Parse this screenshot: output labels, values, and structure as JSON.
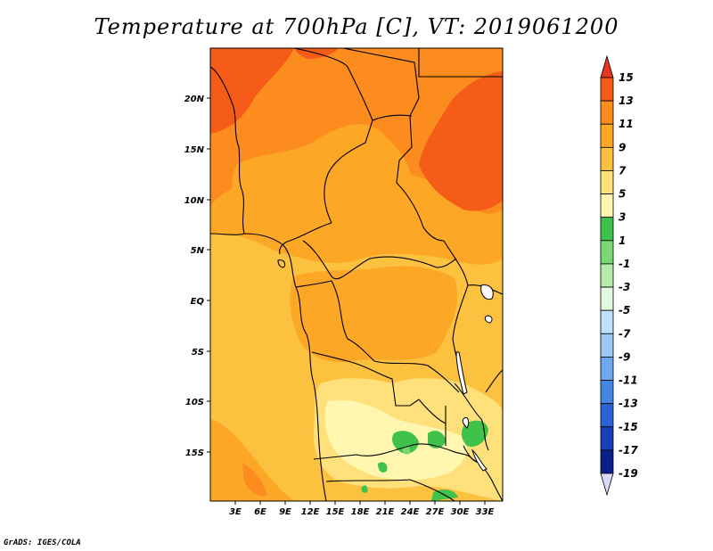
{
  "title": "Temperature at 700hPa [C], VT: 2019061200",
  "footer": "GrADS: IGES/COLA",
  "map": {
    "lon_labels": [
      "3E",
      "6E",
      "9E",
      "12E",
      "15E",
      "18E",
      "21E",
      "24E",
      "27E",
      "30E",
      "33E"
    ],
    "lat_labels": [
      "20N",
      "15N",
      "10N",
      "5N",
      "EQ",
      "5S",
      "10S",
      "15S"
    ]
  },
  "colorbar": {
    "labels": [
      "15",
      "13",
      "11",
      "9",
      "7",
      "5",
      "3",
      "1",
      "-1",
      "-3",
      "-5",
      "-7",
      "-9",
      "-11",
      "-13",
      "-15",
      "-17",
      "-19"
    ],
    "colors": [
      "#e8361f",
      "#f55c17",
      "#fb8c1d",
      "#fda726",
      "#fbc13f",
      "#ffe07a",
      "#fff6b0",
      "#3ec24a",
      "#79d872",
      "#b4eda9",
      "#e2f8e0",
      "#bfe1fb",
      "#9ccaf5",
      "#6fa8ef",
      "#4585e4",
      "#2a63d6",
      "#1940b7",
      "#0b1f8c",
      "#0a0c5c",
      "#d8d9fb"
    ]
  }
}
